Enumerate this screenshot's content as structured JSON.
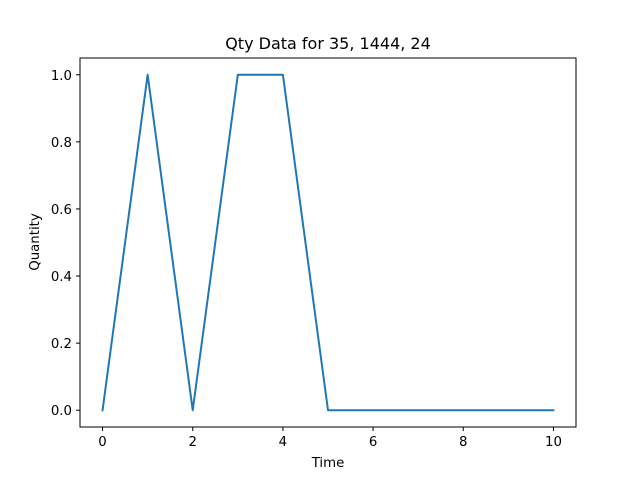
{
  "chart_data": {
    "type": "line",
    "title": "Qty Data for 35, 1444, 24",
    "xlabel": "Time",
    "ylabel": "Quantity",
    "xlim": [
      -0.5,
      10.5
    ],
    "ylim": [
      -0.05,
      1.05
    ],
    "xticks": [
      0,
      2,
      4,
      6,
      8,
      10
    ],
    "xtick_labels": [
      "0",
      "2",
      "4",
      "6",
      "8",
      "10"
    ],
    "yticks": [
      0.0,
      0.2,
      0.4,
      0.6,
      0.8,
      1.0
    ],
    "ytick_labels": [
      "0.0",
      "0.2",
      "0.4",
      "0.6",
      "0.8",
      "1.0"
    ],
    "grid": false,
    "series": [
      {
        "color": "#1f77b4",
        "x": [
          0,
          1,
          2,
          3,
          4,
          5,
          6,
          7,
          8,
          9,
          10
        ],
        "y": [
          0,
          1,
          0,
          1,
          1,
          0,
          0,
          0,
          0,
          0,
          0
        ]
      }
    ]
  }
}
